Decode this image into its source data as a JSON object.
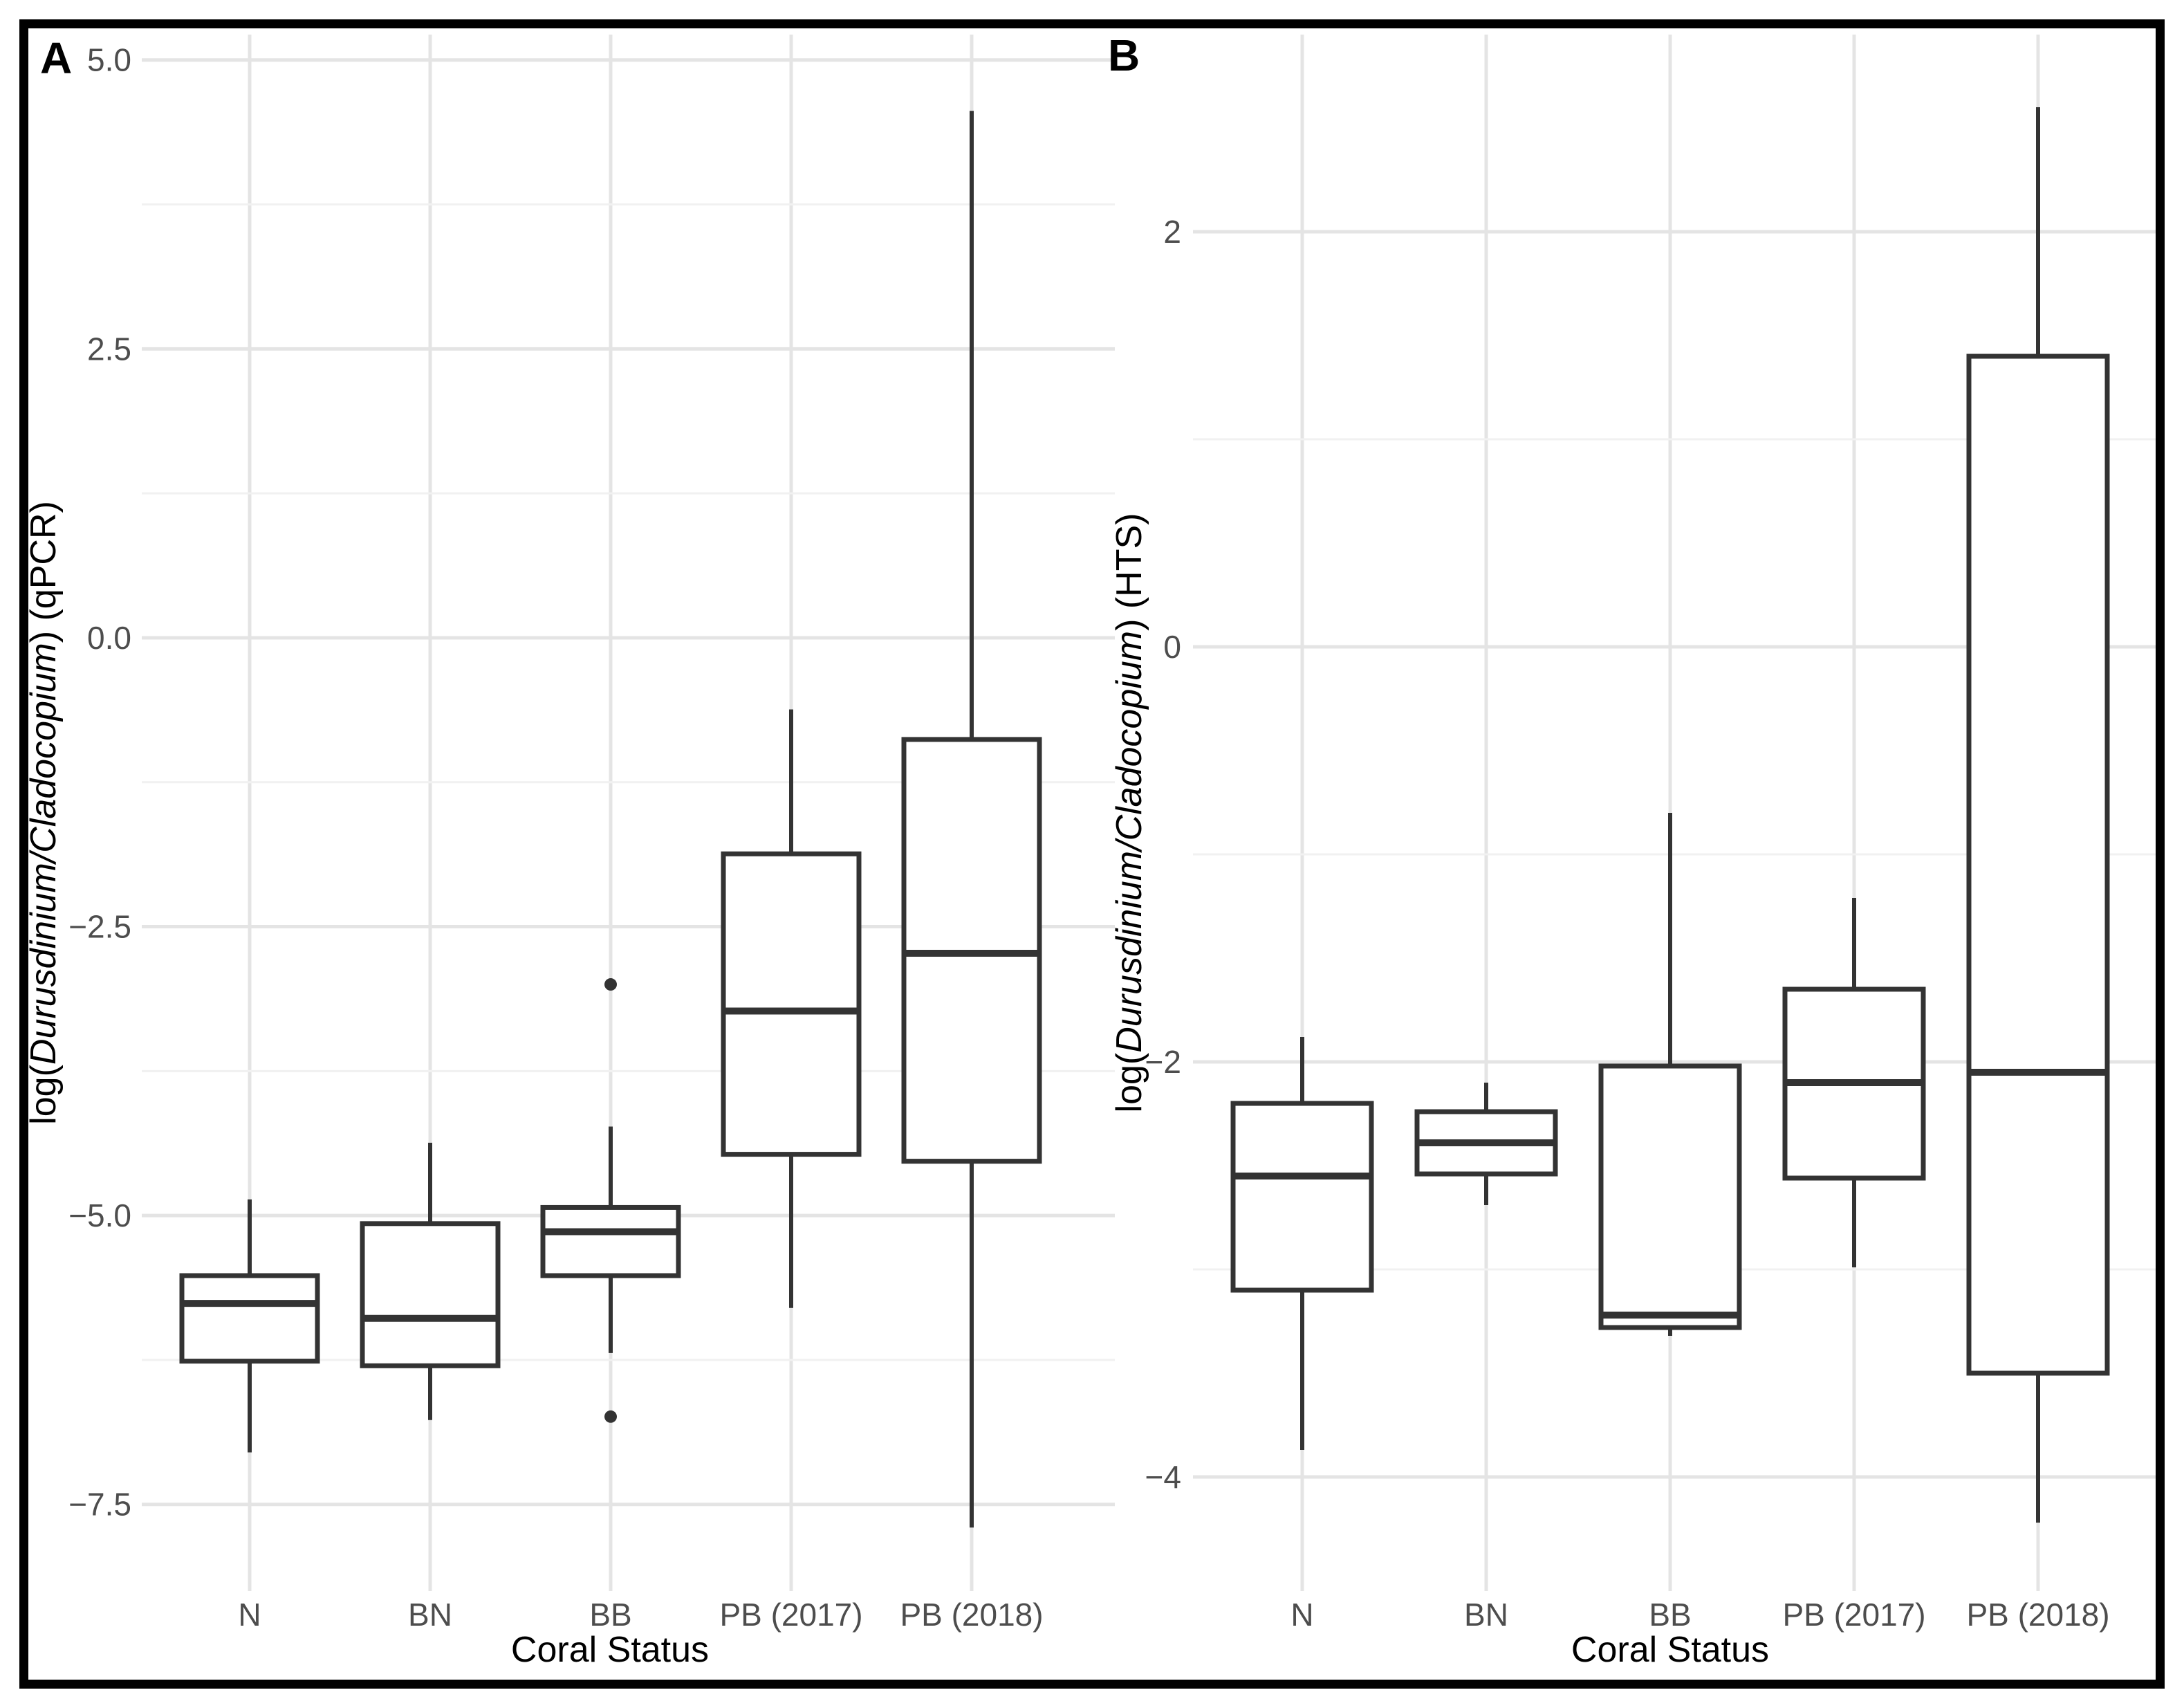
{
  "style": {
    "background": "#ffffff",
    "border_color": "#000000",
    "box_color": "#333333",
    "box_fill": "#ffffff",
    "grid_major": "#e4e4e4",
    "grid_minor": "#f1f1f1",
    "tick_text_color": "#4d4d4d",
    "title_text_color": "#000000"
  },
  "chart_data": [
    {
      "type": "boxplot",
      "panel_label": "A",
      "title": "",
      "xlabel": "Coral Status",
      "ylabel_parts": {
        "prefix": "log(",
        "italic": "Durusdinium/Cladocopium",
        "suffix": ")  (qPCR)"
      },
      "categories": [
        "N",
        "BN",
        "BB",
        "PB (2017)",
        "PB (2018)"
      ],
      "ylim": [
        -8.25,
        5.22
      ],
      "yticks_major": [
        {
          "value": 5.0,
          "label": "5.0"
        },
        {
          "value": 2.5,
          "label": "2.5"
        },
        {
          "value": 0.0,
          "label": "0.0"
        },
        {
          "value": -2.5,
          "label": "−2.5"
        },
        {
          "value": -5.0,
          "label": "−5.0"
        },
        {
          "value": -7.5,
          "label": "−7.5"
        }
      ],
      "yticks_minor": [
        3.75,
        1.25,
        -1.25,
        -3.75,
        -6.25
      ],
      "grid": {
        "horizontal_major": true,
        "horizontal_minor": true,
        "vertical_category_lines": true,
        "legend": "none"
      },
      "boxes": [
        {
          "category": "N",
          "lower_whisker": -7.05,
          "q1": -6.26,
          "median": -5.76,
          "q3": -5.52,
          "upper_whisker": -4.86,
          "outliers": []
        },
        {
          "category": "BN",
          "lower_whisker": -6.77,
          "q1": -6.3,
          "median": -5.89,
          "q3": -5.07,
          "upper_whisker": -4.37,
          "outliers": []
        },
        {
          "category": "BB",
          "lower_whisker": -6.19,
          "q1": -5.52,
          "median": -5.14,
          "q3": -4.93,
          "upper_whisker": -4.23,
          "outliers": [
            -3.0,
            -6.74
          ]
        },
        {
          "category": "PB (2017)",
          "lower_whisker": -5.8,
          "q1": -4.47,
          "median": -3.23,
          "q3": -1.87,
          "upper_whisker": -0.62,
          "outliers": []
        },
        {
          "category": "PB (2018)",
          "lower_whisker": -7.7,
          "q1": -4.53,
          "median": -2.73,
          "q3": -0.88,
          "upper_whisker": 4.56,
          "outliers": []
        }
      ]
    },
    {
      "type": "boxplot",
      "panel_label": "B",
      "title": "",
      "xlabel": "Coral Status",
      "ylabel_parts": {
        "prefix": "log(",
        "italic": "Durusdinium/Cladocopium",
        "suffix": ")  (HTS)"
      },
      "categories": [
        "N",
        "BN",
        "BB",
        "PB (2017)",
        "PB (2018)"
      ],
      "ylim": [
        -4.55,
        2.95
      ],
      "yticks_major": [
        {
          "value": 2,
          "label": "2"
        },
        {
          "value": 0,
          "label": "0"
        },
        {
          "value": -2,
          "label": "−2"
        },
        {
          "value": -4,
          "label": "−4"
        }
      ],
      "yticks_minor": [
        1,
        -1,
        -3
      ],
      "grid": {
        "horizontal_major": true,
        "horizontal_minor": true,
        "vertical_category_lines": true,
        "legend": "none"
      },
      "boxes": [
        {
          "category": "N",
          "lower_whisker": -3.87,
          "q1": -3.1,
          "median": -2.55,
          "q3": -2.2,
          "upper_whisker": -1.88,
          "outliers": []
        },
        {
          "category": "BN",
          "lower_whisker": -2.69,
          "q1": -2.54,
          "median": -2.39,
          "q3": -2.24,
          "upper_whisker": -2.1,
          "outliers": []
        },
        {
          "category": "BB",
          "lower_whisker": -3.32,
          "q1": -3.28,
          "median": -3.22,
          "q3": -2.02,
          "upper_whisker": -0.8,
          "outliers": []
        },
        {
          "category": "PB (2017)",
          "lower_whisker": -2.99,
          "q1": -2.56,
          "median": -2.1,
          "q3": -1.65,
          "upper_whisker": -1.21,
          "outliers": []
        },
        {
          "category": "PB (2018)",
          "lower_whisker": -4.22,
          "q1": -3.5,
          "median": -2.05,
          "q3": 1.4,
          "upper_whisker": 2.6,
          "outliers": []
        }
      ]
    }
  ]
}
